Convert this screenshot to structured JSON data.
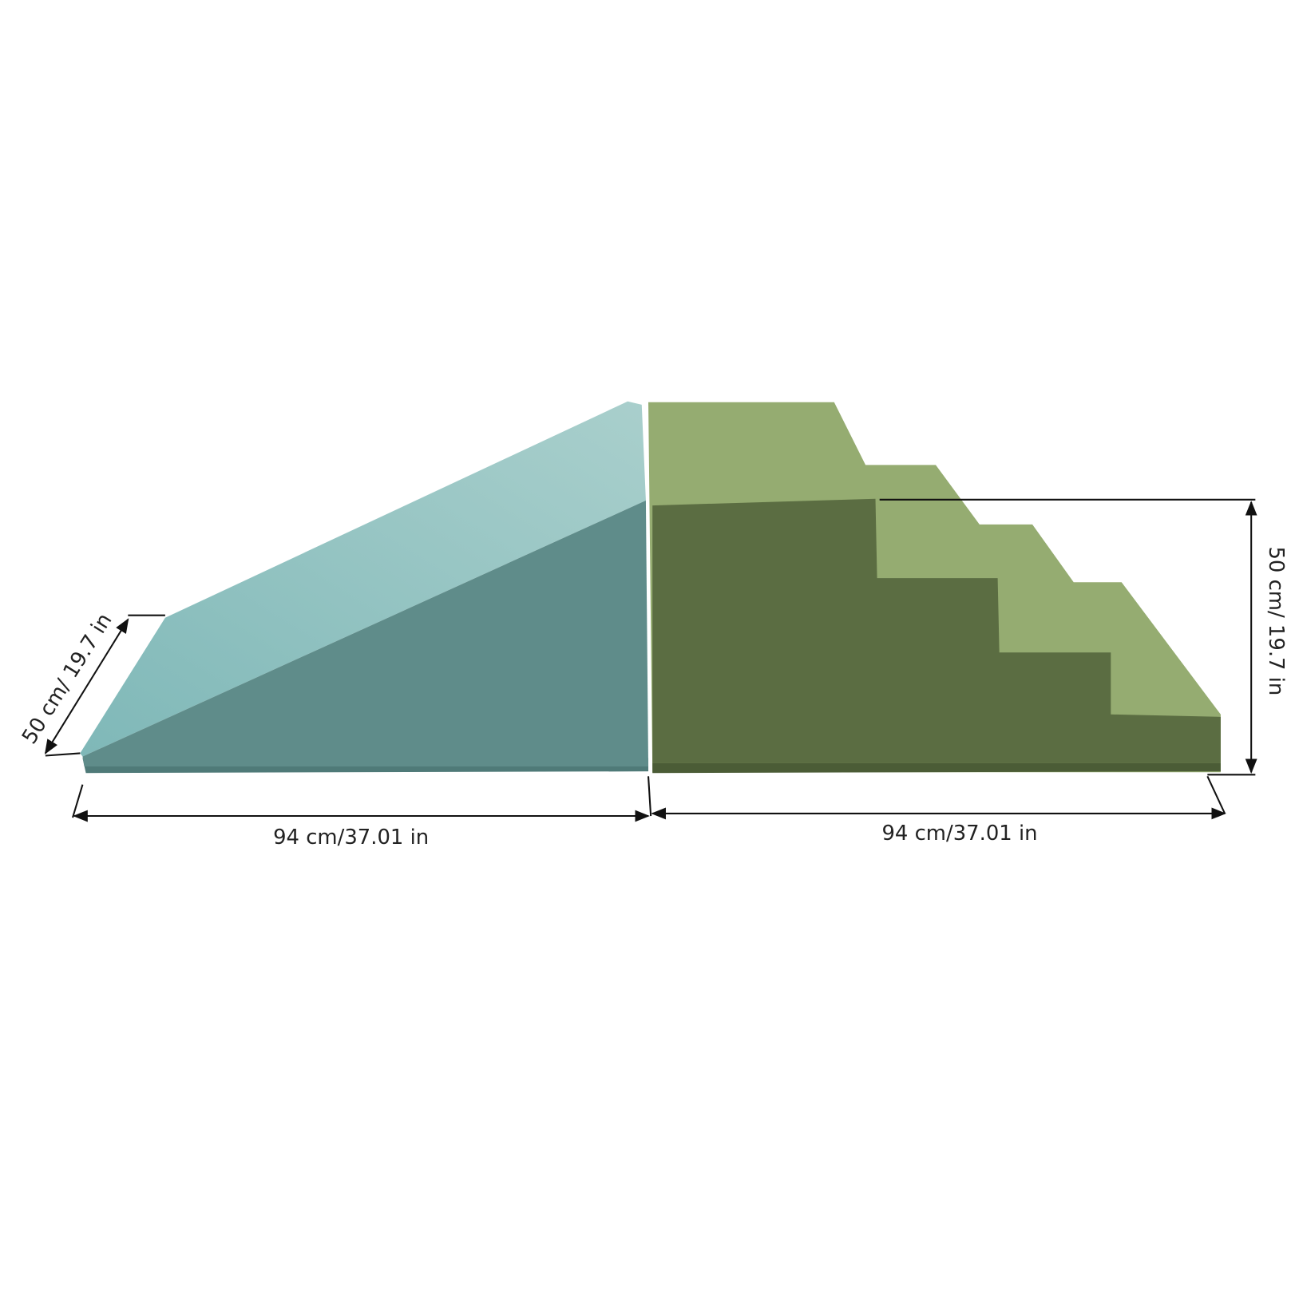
{
  "dimensions": {
    "depth_left": "50 cm/ 19.7 in",
    "width_left": "94 cm/37.01 in",
    "width_right": "94 cm/37.01 in",
    "height_right": "50 cm/ 19.7 in"
  }
}
